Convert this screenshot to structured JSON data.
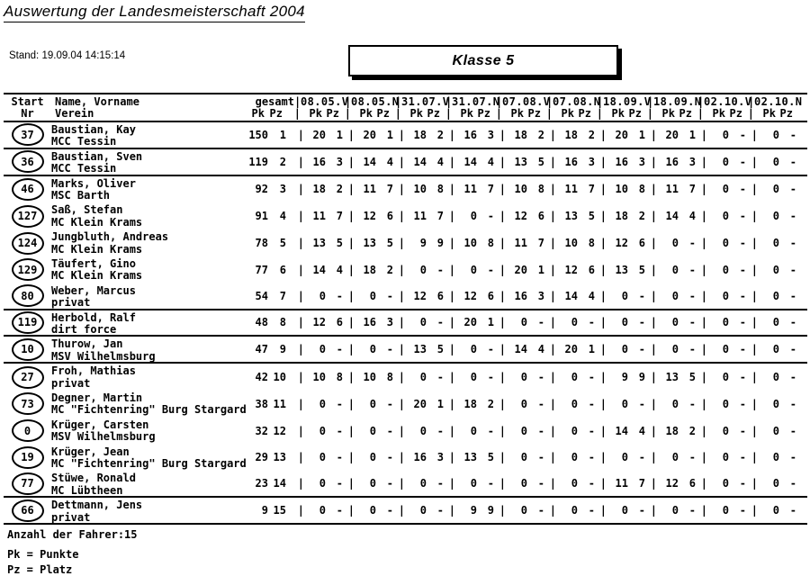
{
  "page": {
    "title": "Auswertung der Landesmeisterschaft 2004",
    "stand_label": "Stand:",
    "stand_value": "19.09.04 14:15:14",
    "klasse": "Klasse 5"
  },
  "table": {
    "header": {
      "start_line1": "Start",
      "start_line2": "Nr",
      "name_line1": "Name, Vorname",
      "name_line2": "Verein",
      "gesamt_label": "gesamt",
      "race_labels": [
        "08.05.V",
        "08.05.N",
        "31.07.V",
        "31.07.N",
        "07.08.V",
        "07.08.N",
        "18.09.V",
        "18.09.N",
        "02.10.V",
        "02.10.N"
      ],
      "pk_label": "Pk",
      "pz_label": "Pz",
      "separator_glyph": "|"
    },
    "rule_after_positions": [
      1,
      2,
      7,
      8,
      9,
      14,
      15
    ],
    "rows": [
      {
        "start_nr": "37",
        "name": "Baustian, Kay",
        "verein": "MCC Tessin",
        "gesamt_pk": "150",
        "gesamt_pz": "1",
        "races": [
          [
            "20",
            "1"
          ],
          [
            "20",
            "1"
          ],
          [
            "18",
            "2"
          ],
          [
            "16",
            "3"
          ],
          [
            "18",
            "2"
          ],
          [
            "18",
            "2"
          ],
          [
            "20",
            "1"
          ],
          [
            "20",
            "1"
          ],
          [
            "0",
            "-"
          ],
          [
            "0",
            "-"
          ]
        ]
      },
      {
        "start_nr": "36",
        "name": "Baustian, Sven",
        "verein": "MCC Tessin",
        "gesamt_pk": "119",
        "gesamt_pz": "2",
        "races": [
          [
            "16",
            "3"
          ],
          [
            "14",
            "4"
          ],
          [
            "14",
            "4"
          ],
          [
            "14",
            "4"
          ],
          [
            "13",
            "5"
          ],
          [
            "16",
            "3"
          ],
          [
            "16",
            "3"
          ],
          [
            "16",
            "3"
          ],
          [
            "0",
            "-"
          ],
          [
            "0",
            "-"
          ]
        ]
      },
      {
        "start_nr": "46",
        "name": "Marks, Oliver",
        "verein": "MSC Barth",
        "gesamt_pk": "92",
        "gesamt_pz": "3",
        "races": [
          [
            "18",
            "2"
          ],
          [
            "11",
            "7"
          ],
          [
            "10",
            "8"
          ],
          [
            "11",
            "7"
          ],
          [
            "10",
            "8"
          ],
          [
            "11",
            "7"
          ],
          [
            "10",
            "8"
          ],
          [
            "11",
            "7"
          ],
          [
            "0",
            "-"
          ],
          [
            "0",
            "-"
          ]
        ]
      },
      {
        "start_nr": "127",
        "name": "Saß, Stefan",
        "verein": "MC Klein Krams",
        "gesamt_pk": "91",
        "gesamt_pz": "4",
        "races": [
          [
            "11",
            "7"
          ],
          [
            "12",
            "6"
          ],
          [
            "11",
            "7"
          ],
          [
            "0",
            "-"
          ],
          [
            "12",
            "6"
          ],
          [
            "13",
            "5"
          ],
          [
            "18",
            "2"
          ],
          [
            "14",
            "4"
          ],
          [
            "0",
            "-"
          ],
          [
            "0",
            "-"
          ]
        ]
      },
      {
        "start_nr": "124",
        "name": "Jungbluth, Andreas",
        "verein": "MC Klein Krams",
        "gesamt_pk": "78",
        "gesamt_pz": "5",
        "races": [
          [
            "13",
            "5"
          ],
          [
            "13",
            "5"
          ],
          [
            "9",
            "9"
          ],
          [
            "10",
            "8"
          ],
          [
            "11",
            "7"
          ],
          [
            "10",
            "8"
          ],
          [
            "12",
            "6"
          ],
          [
            "0",
            "-"
          ],
          [
            "0",
            "-"
          ],
          [
            "0",
            "-"
          ]
        ]
      },
      {
        "start_nr": "129",
        "name": "Täufert, Gino",
        "verein": "MC Klein Krams",
        "gesamt_pk": "77",
        "gesamt_pz": "6",
        "races": [
          [
            "14",
            "4"
          ],
          [
            "18",
            "2"
          ],
          [
            "0",
            "-"
          ],
          [
            "0",
            "-"
          ],
          [
            "20",
            "1"
          ],
          [
            "12",
            "6"
          ],
          [
            "13",
            "5"
          ],
          [
            "0",
            "-"
          ],
          [
            "0",
            "-"
          ],
          [
            "0",
            "-"
          ]
        ]
      },
      {
        "start_nr": "80",
        "name": "Weber, Marcus",
        "verein": "privat",
        "gesamt_pk": "54",
        "gesamt_pz": "7",
        "races": [
          [
            "0",
            "-"
          ],
          [
            "0",
            "-"
          ],
          [
            "12",
            "6"
          ],
          [
            "12",
            "6"
          ],
          [
            "16",
            "3"
          ],
          [
            "14",
            "4"
          ],
          [
            "0",
            "-"
          ],
          [
            "0",
            "-"
          ],
          [
            "0",
            "-"
          ],
          [
            "0",
            "-"
          ]
        ]
      },
      {
        "start_nr": "119",
        "name": "Herbold, Ralf",
        "verein": "dirt force",
        "gesamt_pk": "48",
        "gesamt_pz": "8",
        "races": [
          [
            "12",
            "6"
          ],
          [
            "16",
            "3"
          ],
          [
            "0",
            "-"
          ],
          [
            "20",
            "1"
          ],
          [
            "0",
            "-"
          ],
          [
            "0",
            "-"
          ],
          [
            "0",
            "-"
          ],
          [
            "0",
            "-"
          ],
          [
            "0",
            "-"
          ],
          [
            "0",
            "-"
          ]
        ]
      },
      {
        "start_nr": "10",
        "name": "Thurow, Jan",
        "verein": "MSV Wilhelmsburg",
        "gesamt_pk": "47",
        "gesamt_pz": "9",
        "races": [
          [
            "0",
            "-"
          ],
          [
            "0",
            "-"
          ],
          [
            "13",
            "5"
          ],
          [
            "0",
            "-"
          ],
          [
            "14",
            "4"
          ],
          [
            "20",
            "1"
          ],
          [
            "0",
            "-"
          ],
          [
            "0",
            "-"
          ],
          [
            "0",
            "-"
          ],
          [
            "0",
            "-"
          ]
        ]
      },
      {
        "start_nr": "27",
        "name": "Froh, Mathias",
        "verein": "privat",
        "gesamt_pk": "42",
        "gesamt_pz": "10",
        "races": [
          [
            "10",
            "8"
          ],
          [
            "10",
            "8"
          ],
          [
            "0",
            "-"
          ],
          [
            "0",
            "-"
          ],
          [
            "0",
            "-"
          ],
          [
            "0",
            "-"
          ],
          [
            "9",
            "9"
          ],
          [
            "13",
            "5"
          ],
          [
            "0",
            "-"
          ],
          [
            "0",
            "-"
          ]
        ]
      },
      {
        "start_nr": "73",
        "name": "Degner, Martin",
        "verein": "MC \"Fichtenring\" Burg Stargard",
        "gesamt_pk": "38",
        "gesamt_pz": "11",
        "races": [
          [
            "0",
            "-"
          ],
          [
            "0",
            "-"
          ],
          [
            "20",
            "1"
          ],
          [
            "18",
            "2"
          ],
          [
            "0",
            "-"
          ],
          [
            "0",
            "-"
          ],
          [
            "0",
            "-"
          ],
          [
            "0",
            "-"
          ],
          [
            "0",
            "-"
          ],
          [
            "0",
            "-"
          ]
        ]
      },
      {
        "start_nr": "0",
        "name": "Krüger, Carsten",
        "verein": "MSV Wilhelmsburg",
        "gesamt_pk": "32",
        "gesamt_pz": "12",
        "races": [
          [
            "0",
            "-"
          ],
          [
            "0",
            "-"
          ],
          [
            "0",
            "-"
          ],
          [
            "0",
            "-"
          ],
          [
            "0",
            "-"
          ],
          [
            "0",
            "-"
          ],
          [
            "14",
            "4"
          ],
          [
            "18",
            "2"
          ],
          [
            "0",
            "-"
          ],
          [
            "0",
            "-"
          ]
        ]
      },
      {
        "start_nr": "19",
        "name": "Krüger, Jean",
        "verein": "MC \"Fichtenring\" Burg Stargard",
        "gesamt_pk": "29",
        "gesamt_pz": "13",
        "races": [
          [
            "0",
            "-"
          ],
          [
            "0",
            "-"
          ],
          [
            "16",
            "3"
          ],
          [
            "13",
            "5"
          ],
          [
            "0",
            "-"
          ],
          [
            "0",
            "-"
          ],
          [
            "0",
            "-"
          ],
          [
            "0",
            "-"
          ],
          [
            "0",
            "-"
          ],
          [
            "0",
            "-"
          ]
        ]
      },
      {
        "start_nr": "77",
        "name": "Stüwe, Ronald",
        "verein": "MC Lübtheen",
        "gesamt_pk": "23",
        "gesamt_pz": "14",
        "races": [
          [
            "0",
            "-"
          ],
          [
            "0",
            "-"
          ],
          [
            "0",
            "-"
          ],
          [
            "0",
            "-"
          ],
          [
            "0",
            "-"
          ],
          [
            "0",
            "-"
          ],
          [
            "11",
            "7"
          ],
          [
            "12",
            "6"
          ],
          [
            "0",
            "-"
          ],
          [
            "0",
            "-"
          ]
        ]
      },
      {
        "start_nr": "66",
        "name": "Dettmann, Jens",
        "verein": "privat",
        "gesamt_pk": "9",
        "gesamt_pz": "15",
        "races": [
          [
            "0",
            "-"
          ],
          [
            "0",
            "-"
          ],
          [
            "0",
            "-"
          ],
          [
            "9",
            "9"
          ],
          [
            "0",
            "-"
          ],
          [
            "0",
            "-"
          ],
          [
            "0",
            "-"
          ],
          [
            "0",
            "-"
          ],
          [
            "0",
            "-"
          ],
          [
            "0",
            "-"
          ]
        ]
      }
    ]
  },
  "footer": {
    "driver_count": "Anzahl der Fahrer:15",
    "legend_pk": "Pk = Punkte",
    "legend_pz": "Pz = Platz"
  }
}
